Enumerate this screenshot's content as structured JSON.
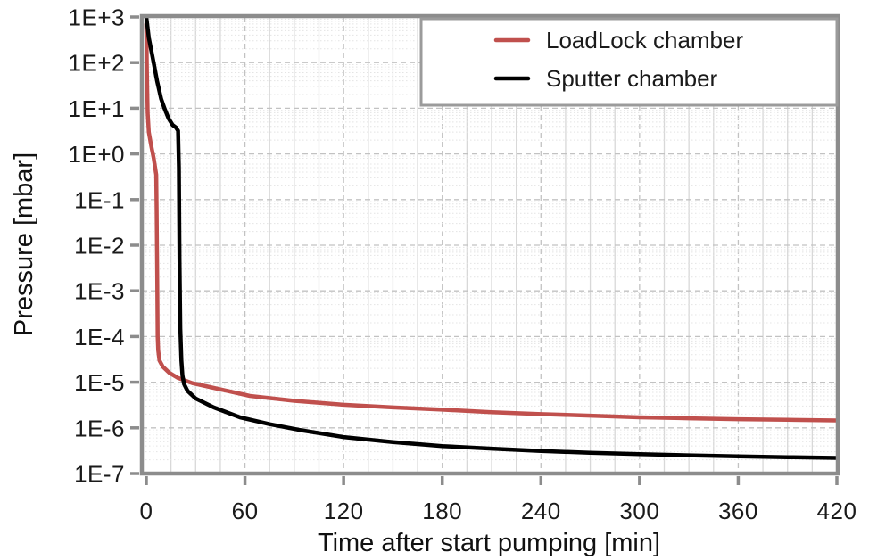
{
  "chart_data": {
    "type": "line",
    "title": "",
    "xlabel": "Time after start pumping [min]",
    "ylabel": "Pressure [mbar]",
    "x_axis": {
      "min": 0,
      "max": 420,
      "major_tick_interval": 60,
      "minor_gridline_interval": 15,
      "tick_labels": [
        "0",
        "60",
        "120",
        "180",
        "240",
        "300",
        "360",
        "420"
      ]
    },
    "y_axis": {
      "scale": "log",
      "min": 1e-07,
      "max": 1000,
      "tick_labels": [
        "1E+3",
        "1E+2",
        "1E+1",
        "1E+0",
        "1E-1",
        "1E-2",
        "1E-3",
        "1E-4",
        "1E-5",
        "1E-6",
        "1E-7"
      ]
    },
    "grid": {
      "on": true,
      "major_color": "#c2c2c2",
      "minor_color": "#e4e4e4",
      "frame_color": "#8c8c8c"
    },
    "legend": {
      "position": "top-right",
      "border_color": "#9b9b9b"
    },
    "series": [
      {
        "name": "LoadLock chamber",
        "color": "#c0504d",
        "points": [
          [
            0,
            700
          ],
          [
            0.4,
            60
          ],
          [
            0.8,
            8
          ],
          [
            1.5,
            3
          ],
          [
            3,
            1.5
          ],
          [
            4.5,
            0.8
          ],
          [
            6,
            0.35
          ],
          [
            6.3,
            0.05
          ],
          [
            6.6,
            0.002
          ],
          [
            6.9,
            0.0001
          ],
          [
            7.2,
            5e-05
          ],
          [
            8,
            3e-05
          ],
          [
            10,
            2.2e-05
          ],
          [
            14,
            1.6e-05
          ],
          [
            19,
            1.25e-05
          ],
          [
            28,
            9.5e-06
          ],
          [
            41,
            7.5e-06
          ],
          [
            57,
            5.6e-06
          ],
          [
            63,
            5e-06
          ],
          [
            90,
            3.9e-06
          ],
          [
            120,
            3.2e-06
          ],
          [
            150,
            2.8e-06
          ],
          [
            180,
            2.5e-06
          ],
          [
            210,
            2.2e-06
          ],
          [
            240,
            2e-06
          ],
          [
            270,
            1.85e-06
          ],
          [
            300,
            1.7e-06
          ],
          [
            330,
            1.62e-06
          ],
          [
            360,
            1.55e-06
          ],
          [
            390,
            1.5e-06
          ],
          [
            420,
            1.45e-06
          ]
        ]
      },
      {
        "name": "Sputter chamber",
        "color": "#000000",
        "points": [
          [
            0,
            1000
          ],
          [
            1.5,
            350
          ],
          [
            4,
            120
          ],
          [
            6.5,
            40
          ],
          [
            9,
            16
          ],
          [
            11,
            10
          ],
          [
            13.5,
            6
          ],
          [
            16,
            4.3
          ],
          [
            18,
            3.8
          ],
          [
            19.3,
            3.2
          ],
          [
            19.8,
            0.5
          ],
          [
            20.2,
            0.005
          ],
          [
            20.7,
            0.00015
          ],
          [
            21.3,
            3e-05
          ],
          [
            22,
            1.4e-05
          ],
          [
            23,
            9e-06
          ],
          [
            25,
            6.5e-06
          ],
          [
            30,
            4.4e-06
          ],
          [
            41,
            2.8e-06
          ],
          [
            57,
            1.7e-06
          ],
          [
            75,
            1.2e-06
          ],
          [
            93,
            9e-07
          ],
          [
            120,
            6.3e-07
          ],
          [
            150,
            4.9e-07
          ],
          [
            180,
            4e-07
          ],
          [
            210,
            3.5e-07
          ],
          [
            240,
            3.1e-07
          ],
          [
            270,
            2.85e-07
          ],
          [
            300,
            2.65e-07
          ],
          [
            330,
            2.5e-07
          ],
          [
            360,
            2.38e-07
          ],
          [
            390,
            2.28e-07
          ],
          [
            420,
            2.2e-07
          ]
        ]
      }
    ]
  }
}
